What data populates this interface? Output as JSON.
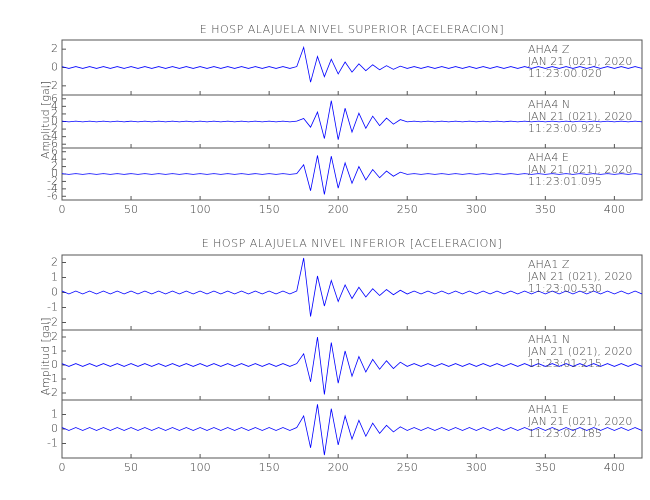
{
  "chart_data": [
    {
      "type": "line",
      "title": "E HOSP ALAJUELA NIVEL SUPERIOR [ACELERACION]",
      "ylabel": "Amplitud [gal]",
      "color": "#0000ff",
      "xlim": [
        0,
        420
      ],
      "xticks": [
        0,
        50,
        100,
        150,
        200,
        250,
        300,
        350,
        400
      ],
      "x": [
        0,
        5,
        10,
        15,
        20,
        25,
        30,
        35,
        40,
        45,
        50,
        55,
        60,
        65,
        70,
        75,
        80,
        85,
        90,
        95,
        100,
        105,
        110,
        115,
        120,
        125,
        130,
        135,
        140,
        145,
        150,
        155,
        160,
        165,
        170,
        175,
        180,
        185,
        190,
        195,
        200,
        205,
        210,
        215,
        220,
        225,
        230,
        235,
        240,
        245,
        250,
        255,
        260,
        265,
        270,
        275,
        280,
        285,
        290,
        295,
        300,
        305,
        310,
        315,
        320,
        325,
        330,
        335,
        340,
        345,
        350,
        355,
        360,
        365,
        370,
        375,
        380,
        385,
        390,
        395,
        400,
        405,
        410,
        415,
        420
      ],
      "panels": [
        {
          "station": "AHA4   Z",
          "date": "JAN 21 (021), 2020",
          "time": "11:23:00.020",
          "ylim": [
            -3,
            3
          ],
          "yticks": [
            -2,
            0,
            2
          ],
          "values": [
            0.1,
            -0.1,
            0.1,
            -0.1,
            0.1,
            -0.1,
            0.1,
            -0.1,
            0.1,
            -0.1,
            0.1,
            -0.1,
            0.1,
            -0.1,
            0.1,
            -0.1,
            0.1,
            -0.1,
            0.1,
            -0.1,
            0.1,
            -0.1,
            0.1,
            -0.1,
            0.1,
            -0.1,
            0.1,
            -0.1,
            0.1,
            -0.1,
            0.1,
            -0.1,
            0.1,
            -0.1,
            0.1,
            2.2,
            -1.6,
            1.2,
            -1.0,
            0.9,
            -0.7,
            0.6,
            -0.5,
            0.4,
            -0.35,
            0.3,
            -0.25,
            0.2,
            -0.2,
            0.15,
            -0.1,
            0.1,
            -0.1,
            0.1,
            -0.1,
            0.1,
            -0.1,
            0.1,
            -0.1,
            0.1,
            -0.1,
            0.1,
            -0.1,
            0.1,
            -0.1,
            0.1,
            -0.1,
            0.1,
            -0.1,
            0.1,
            -0.1,
            0.1,
            -0.1,
            0.1,
            -0.1,
            0.1,
            -0.1,
            0.1,
            -0.1,
            0.1,
            -0.1,
            0.1,
            -0.1,
            0.1,
            -0.1
          ]
        },
        {
          "station": "AHA4   N",
          "date": "JAN 21 (021), 2020",
          "time": "11:23:00.925",
          "ylim": [
            -7,
            7
          ],
          "yticks": [
            -6,
            -4,
            -2,
            0,
            2,
            4,
            6
          ],
          "values": [
            0.1,
            -0.1,
            0.1,
            -0.1,
            0.1,
            -0.1,
            0.1,
            -0.1,
            0.1,
            -0.1,
            0.1,
            -0.1,
            0.1,
            -0.1,
            0.1,
            -0.1,
            0.1,
            -0.1,
            0.1,
            -0.1,
            0.1,
            -0.1,
            0.1,
            -0.1,
            0.1,
            -0.1,
            0.1,
            -0.1,
            0.1,
            -0.1,
            0.1,
            -0.1,
            0.1,
            -0.1,
            0.1,
            0.8,
            -1.5,
            2.5,
            -4.5,
            5.5,
            -4.8,
            3.5,
            -2.8,
            2.2,
            -1.8,
            1.4,
            -1.1,
            0.9,
            -0.7,
            0.5,
            -0.1,
            0.1,
            -0.1,
            0.1,
            -0.1,
            0.1,
            -0.1,
            0.1,
            -0.1,
            0.1,
            -0.1,
            0.1,
            -0.1,
            0.1,
            -0.1,
            0.1,
            -0.1,
            0.1,
            -0.1,
            0.1,
            -0.1,
            0.1,
            -0.1,
            0.1,
            -0.1,
            0.1,
            -0.1,
            0.1,
            -0.1,
            0.1,
            -0.1,
            0.1,
            -0.1,
            0.1,
            -0.1
          ]
        },
        {
          "station": "AHA4   E",
          "date": "JAN 21 (021), 2020",
          "time": "11:23:01.095",
          "ylim": [
            -7,
            7
          ],
          "yticks": [
            -6,
            -4,
            -2,
            0,
            2,
            4,
            6
          ],
          "values": [
            0.1,
            -0.1,
            0.1,
            -0.1,
            0.1,
            -0.1,
            0.1,
            -0.1,
            0.1,
            -0.1,
            0.1,
            -0.1,
            0.1,
            -0.1,
            0.1,
            -0.1,
            0.1,
            -0.1,
            0.1,
            -0.1,
            0.1,
            -0.1,
            0.1,
            -0.1,
            0.1,
            -0.1,
            0.1,
            -0.1,
            0.1,
            -0.1,
            0.1,
            -0.1,
            0.1,
            -0.1,
            0.1,
            2.5,
            -4.5,
            5,
            -5.5,
            4.8,
            -3.8,
            3,
            -2.5,
            2,
            -1.6,
            1.2,
            -1,
            0.8,
            -0.6,
            0.5,
            -0.1,
            0.1,
            -0.1,
            0.1,
            -0.1,
            0.1,
            -0.1,
            0.1,
            -0.1,
            0.1,
            -0.1,
            0.1,
            -0.1,
            0.1,
            -0.1,
            0.1,
            -0.1,
            0.1,
            -0.1,
            0.1,
            -0.1,
            0.1,
            -0.1,
            0.1,
            -0.1,
            0.1,
            -0.1,
            0.1,
            -0.1,
            0.1,
            -0.1,
            0.1,
            -0.1,
            0.1,
            -0.1
          ]
        }
      ]
    },
    {
      "type": "line",
      "title": "E HOSP ALAJUELA NIVEL INFERIOR [ACELERACION]",
      "ylabel": "Amplitud [gal]",
      "color": "#0000ff",
      "xlim": [
        0,
        420
      ],
      "xticks": [
        0,
        50,
        100,
        150,
        200,
        250,
        300,
        350,
        400
      ],
      "x": [
        0,
        5,
        10,
        15,
        20,
        25,
        30,
        35,
        40,
        45,
        50,
        55,
        60,
        65,
        70,
        75,
        80,
        85,
        90,
        95,
        100,
        105,
        110,
        115,
        120,
        125,
        130,
        135,
        140,
        145,
        150,
        155,
        160,
        165,
        170,
        175,
        180,
        185,
        190,
        195,
        200,
        205,
        210,
        215,
        220,
        225,
        230,
        235,
        240,
        245,
        250,
        255,
        260,
        265,
        270,
        275,
        280,
        285,
        290,
        295,
        300,
        305,
        310,
        315,
        320,
        325,
        330,
        335,
        340,
        345,
        350,
        355,
        360,
        365,
        370,
        375,
        380,
        385,
        390,
        395,
        400,
        405,
        410,
        415,
        420
      ],
      "panels": [
        {
          "station": "AHA1   Z",
          "date": "JAN 21 (021), 2020",
          "time": "11:23:00.530",
          "ylim": [
            -2.5,
            2.5
          ],
          "yticks": [
            -2,
            -1,
            0,
            1,
            2
          ],
          "values": [
            0.1,
            -0.1,
            0.1,
            -0.1,
            0.1,
            -0.1,
            0.1,
            -0.1,
            0.1,
            -0.1,
            0.1,
            -0.1,
            0.1,
            -0.1,
            0.1,
            -0.1,
            0.1,
            -0.1,
            0.1,
            -0.1,
            0.1,
            -0.1,
            0.1,
            -0.1,
            0.1,
            -0.1,
            0.1,
            -0.1,
            0.1,
            -0.1,
            0.1,
            -0.1,
            0.1,
            -0.1,
            0.1,
            2.3,
            -1.6,
            1.1,
            -0.9,
            0.8,
            -0.6,
            0.5,
            -0.4,
            0.35,
            -0.3,
            0.25,
            -0.2,
            0.2,
            -0.15,
            0.15,
            -0.1,
            0.1,
            -0.1,
            0.1,
            -0.1,
            0.1,
            -0.1,
            0.1,
            -0.1,
            0.1,
            -0.1,
            0.1,
            -0.1,
            0.1,
            -0.1,
            0.1,
            -0.1,
            0.1,
            -0.1,
            0.1,
            -0.1,
            0.1,
            -0.1,
            0.1,
            -0.1,
            0.1,
            -0.1,
            0.1,
            -0.1,
            0.1,
            -0.1,
            0.1,
            -0.1,
            0.1,
            -0.1
          ]
        },
        {
          "station": "AHA1   N",
          "date": "JAN 21 (021), 2020",
          "time": "11:23:01.215",
          "ylim": [
            -2.5,
            2.5
          ],
          "yticks": [
            -2,
            -1,
            0,
            1,
            2
          ],
          "values": [
            0.1,
            -0.1,
            0.1,
            -0.1,
            0.1,
            -0.1,
            0.1,
            -0.1,
            0.1,
            -0.1,
            0.1,
            -0.1,
            0.1,
            -0.1,
            0.1,
            -0.1,
            0.1,
            -0.1,
            0.1,
            -0.1,
            0.1,
            -0.1,
            0.1,
            -0.1,
            0.1,
            -0.1,
            0.1,
            -0.1,
            0.1,
            -0.1,
            0.1,
            -0.1,
            0.1,
            -0.1,
            0.1,
            0.8,
            -1.2,
            2.0,
            -2.1,
            1.6,
            -1.3,
            1.0,
            -0.8,
            0.6,
            -0.5,
            0.4,
            -0.3,
            0.3,
            -0.25,
            0.2,
            -0.1,
            0.1,
            -0.1,
            0.1,
            -0.1,
            0.1,
            -0.1,
            0.1,
            -0.1,
            0.1,
            -0.1,
            0.1,
            -0.1,
            0.1,
            -0.1,
            0.1,
            -0.1,
            0.1,
            -0.1,
            0.1,
            -0.1,
            0.1,
            -0.1,
            0.1,
            -0.1,
            0.1,
            -0.1,
            0.1,
            -0.1,
            0.1,
            -0.1,
            0.1,
            -0.1,
            0.1,
            -0.1
          ]
        },
        {
          "station": "AHA1   E",
          "date": "JAN 21 (021), 2020",
          "time": "11:23:02.185",
          "ylim": [
            -2,
            2
          ],
          "yticks": [
            -1,
            0,
            1
          ],
          "values": [
            0.1,
            -0.1,
            0.1,
            -0.1,
            0.1,
            -0.1,
            0.1,
            -0.1,
            0.1,
            -0.1,
            0.1,
            -0.1,
            0.1,
            -0.1,
            0.1,
            -0.1,
            0.1,
            -0.1,
            0.1,
            -0.1,
            0.1,
            -0.1,
            0.1,
            -0.1,
            0.1,
            -0.1,
            0.1,
            -0.1,
            0.1,
            -0.1,
            0.1,
            -0.1,
            0.1,
            -0.1,
            0.1,
            0.9,
            -1.3,
            1.7,
            -1.8,
            1.4,
            -1.1,
            0.9,
            -0.7,
            0.6,
            -0.5,
            0.4,
            -0.3,
            0.25,
            -0.2,
            0.15,
            -0.1,
            0.1,
            -0.1,
            0.1,
            -0.1,
            0.1,
            -0.1,
            0.1,
            -0.1,
            0.1,
            -0.1,
            0.1,
            -0.1,
            0.1,
            -0.1,
            0.1,
            -0.1,
            0.1,
            -0.1,
            0.1,
            -0.1,
            0.1,
            -0.1,
            0.1,
            -0.1,
            0.1,
            -0.1,
            0.1,
            -0.1,
            0.1,
            -0.1,
            0.1,
            -0.1,
            0.1,
            -0.1
          ]
        }
      ]
    }
  ]
}
